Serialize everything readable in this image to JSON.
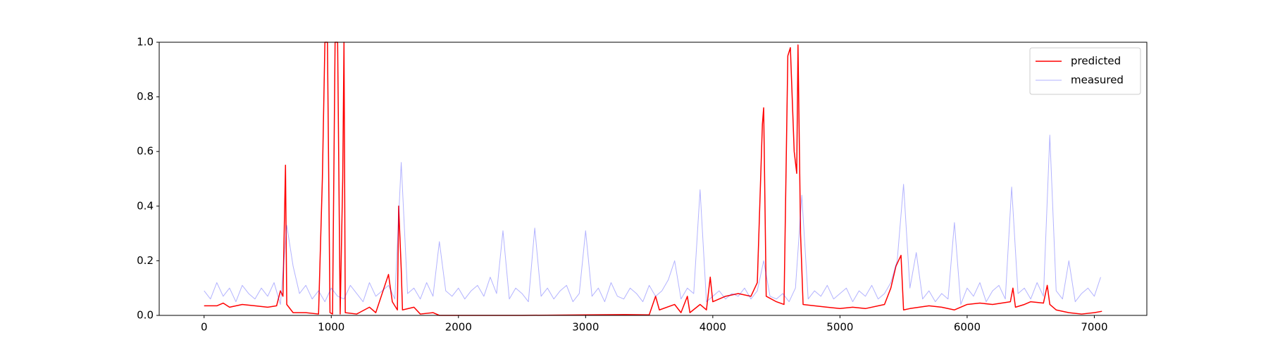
{
  "chart_data": {
    "type": "line",
    "xlim": [
      -353,
      7413
    ],
    "ylim": [
      0,
      1
    ],
    "xticks": [
      0,
      1000,
      2000,
      3000,
      4000,
      5000,
      6000,
      7000
    ],
    "yticks": [
      {
        "value": 0,
        "label": "0.0"
      },
      0.2,
      0.4,
      0.6,
      0.8,
      {
        "value": 1,
        "label": "1.0"
      }
    ],
    "legend": "upper right",
    "series": [
      {
        "name": "predicted",
        "color": "#ff0000",
        "linewidth": 1.5,
        "alpha": 1,
        "x": [
          0,
          100,
          150,
          200,
          300,
          400,
          500,
          570,
          600,
          620,
          640,
          650,
          700,
          800,
          900,
          930,
          950,
          970,
          990,
          1010,
          1030,
          1050,
          1070,
          1090,
          1100,
          1110,
          1200,
          1300,
          1350,
          1450,
          1480,
          1520,
          1530,
          1550,
          1560,
          1650,
          1700,
          1800,
          1850,
          2000,
          2500,
          3000,
          3300,
          3500,
          3550,
          3580,
          3700,
          3750,
          3800,
          3820,
          3900,
          3950,
          3980,
          4000,
          4100,
          4200,
          4300,
          4350,
          4390,
          4400,
          4420,
          4500,
          4560,
          4590,
          4610,
          4640,
          4660,
          4670,
          4690,
          4710,
          4800,
          4900,
          5000,
          5100,
          5200,
          5350,
          5400,
          5440,
          5480,
          5500,
          5550,
          5700,
          5800,
          5900,
          6000,
          6100,
          6200,
          6340,
          6360,
          6380,
          6450,
          6500,
          6600,
          6630,
          6650,
          6700,
          6800,
          6900,
          7000,
          7060
        ],
        "values": [
          0.035,
          0.035,
          0.045,
          0.03,
          0.04,
          0.035,
          0.03,
          0.035,
          0.09,
          0.07,
          0.55,
          0.04,
          0.01,
          0.01,
          0.005,
          0.5,
          1.0,
          1.0,
          0.01,
          0.005,
          1.0,
          1.0,
          0.005,
          0.5,
          1.0,
          0.01,
          0.005,
          0.03,
          0.01,
          0.15,
          0.05,
          0.02,
          0.4,
          0.17,
          0.02,
          0.03,
          0.005,
          0.01,
          0.0,
          0.0,
          0.0,
          0.002,
          0.003,
          0.002,
          0.07,
          0.02,
          0.04,
          0.01,
          0.07,
          0.01,
          0.04,
          0.02,
          0.14,
          0.05,
          0.07,
          0.08,
          0.07,
          0.12,
          0.7,
          0.76,
          0.07,
          0.05,
          0.04,
          0.95,
          0.98,
          0.6,
          0.52,
          0.99,
          0.3,
          0.04,
          0.035,
          0.03,
          0.025,
          0.03,
          0.025,
          0.04,
          0.1,
          0.18,
          0.22,
          0.02,
          0.025,
          0.035,
          0.03,
          0.02,
          0.04,
          0.045,
          0.04,
          0.05,
          0.1,
          0.03,
          0.04,
          0.05,
          0.045,
          0.11,
          0.04,
          0.02,
          0.01,
          0.005,
          0.01,
          0.015
        ]
      },
      {
        "name": "measured",
        "color": "#0000ff",
        "linewidth": 1,
        "alpha": 0.3,
        "x": [
          0,
          50,
          100,
          150,
          200,
          250,
          300,
          350,
          400,
          450,
          500,
          550,
          600,
          650,
          700,
          750,
          800,
          850,
          900,
          950,
          1000,
          1050,
          1100,
          1150,
          1200,
          1250,
          1300,
          1350,
          1400,
          1450,
          1500,
          1550,
          1600,
          1650,
          1700,
          1750,
          1800,
          1850,
          1900,
          1950,
          2000,
          2050,
          2100,
          2150,
          2200,
          2250,
          2300,
          2350,
          2400,
          2450,
          2500,
          2550,
          2600,
          2650,
          2700,
          2750,
          2800,
          2850,
          2900,
          2950,
          3000,
          3050,
          3100,
          3150,
          3200,
          3250,
          3300,
          3350,
          3400,
          3450,
          3500,
          3550,
          3600,
          3650,
          3700,
          3750,
          3800,
          3850,
          3900,
          3950,
          4000,
          4050,
          4100,
          4150,
          4200,
          4250,
          4300,
          4350,
          4400,
          4450,
          4500,
          4550,
          4600,
          4650,
          4700,
          4750,
          4800,
          4850,
          4900,
          4950,
          5000,
          5050,
          5100,
          5150,
          5200,
          5250,
          5300,
          5350,
          5400,
          5450,
          5500,
          5550,
          5600,
          5650,
          5700,
          5750,
          5800,
          5850,
          5900,
          5950,
          6000,
          6050,
          6100,
          6150,
          6200,
          6250,
          6300,
          6350,
          6400,
          6450,
          6500,
          6550,
          6600,
          6650,
          6700,
          6750,
          6800,
          6850,
          6900,
          6950,
          7000,
          7050
        ],
        "values": [
          0.09,
          0.06,
          0.12,
          0.07,
          0.1,
          0.05,
          0.11,
          0.08,
          0.06,
          0.1,
          0.07,
          0.12,
          0.04,
          0.33,
          0.18,
          0.08,
          0.11,
          0.06,
          0.09,
          0.05,
          0.1,
          0.07,
          0.06,
          0.11,
          0.08,
          0.05,
          0.12,
          0.07,
          0.09,
          0.11,
          0.06,
          0.56,
          0.08,
          0.1,
          0.06,
          0.12,
          0.07,
          0.27,
          0.09,
          0.07,
          0.1,
          0.06,
          0.09,
          0.11,
          0.07,
          0.14,
          0.08,
          0.31,
          0.06,
          0.1,
          0.08,
          0.05,
          0.32,
          0.07,
          0.1,
          0.06,
          0.09,
          0.11,
          0.05,
          0.08,
          0.31,
          0.07,
          0.1,
          0.05,
          0.12,
          0.07,
          0.06,
          0.1,
          0.08,
          0.05,
          0.11,
          0.07,
          0.09,
          0.13,
          0.2,
          0.06,
          0.1,
          0.08,
          0.46,
          0.05,
          0.07,
          0.09,
          0.06,
          0.08,
          0.07,
          0.1,
          0.06,
          0.09,
          0.2,
          0.07,
          0.06,
          0.08,
          0.05,
          0.1,
          0.44,
          0.06,
          0.09,
          0.07,
          0.11,
          0.06,
          0.08,
          0.1,
          0.05,
          0.09,
          0.07,
          0.11,
          0.06,
          0.08,
          0.12,
          0.2,
          0.48,
          0.1,
          0.23,
          0.06,
          0.09,
          0.05,
          0.08,
          0.06,
          0.34,
          0.04,
          0.1,
          0.07,
          0.12,
          0.05,
          0.09,
          0.11,
          0.06,
          0.47,
          0.08,
          0.1,
          0.06,
          0.12,
          0.07,
          0.66,
          0.09,
          0.06,
          0.2,
          0.05,
          0.08,
          0.1,
          0.07,
          0.14
        ]
      }
    ]
  }
}
